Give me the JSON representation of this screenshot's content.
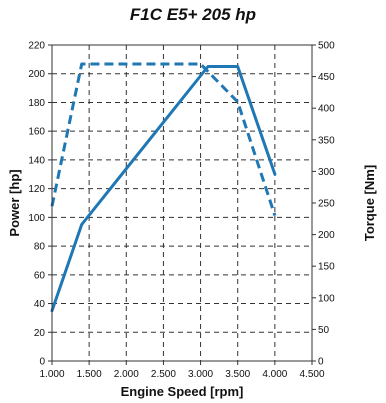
{
  "chart_data": {
    "type": "line",
    "title": "F1C E5+ 205 hp",
    "xlabel": "Engine Speed [rpm]",
    "ylabel_left": "Power [hp]",
    "ylabel_right": "Torque [Nm]",
    "xlim": [
      1000,
      4500
    ],
    "ylim_left": [
      0,
      220
    ],
    "ylim_right": [
      0,
      500
    ],
    "x_ticks": [
      1000,
      1500,
      2000,
      2500,
      3000,
      3500,
      4000,
      4500
    ],
    "x_tick_labels": [
      "1.000",
      "1.500",
      "2.000",
      "2.500",
      "3.000",
      "3.500",
      "4.000",
      "4.500"
    ],
    "y_left_ticks": [
      0,
      20,
      40,
      60,
      80,
      100,
      120,
      140,
      160,
      180,
      200,
      220
    ],
    "y_left_tick_labels": [
      "0",
      "20",
      "40",
      "60",
      "80",
      "100",
      "120",
      "140",
      "160",
      "180",
      "200",
      "220"
    ],
    "y_right_ticks": [
      0,
      50,
      100,
      150,
      200,
      250,
      300,
      350,
      400,
      450,
      500
    ],
    "y_right_tick_labels": [
      "0",
      "50",
      "100",
      "150",
      "200",
      "250",
      "300",
      "350",
      "400",
      "450",
      "500"
    ],
    "grid": true,
    "series": [
      {
        "axis": "left",
        "style": "solid",
        "color": "#1f77b4",
        "x": [
          1000,
          1400,
          3100,
          3500,
          4000
        ],
        "y": [
          35,
          95,
          205,
          205,
          130
        ]
      },
      {
        "axis": "right",
        "style": "dashed",
        "color": "#1f77b4",
        "x": [
          1000,
          1400,
          3000,
          3500,
          4000
        ],
        "y": [
          245,
          470,
          470,
          410,
          230
        ]
      }
    ]
  }
}
